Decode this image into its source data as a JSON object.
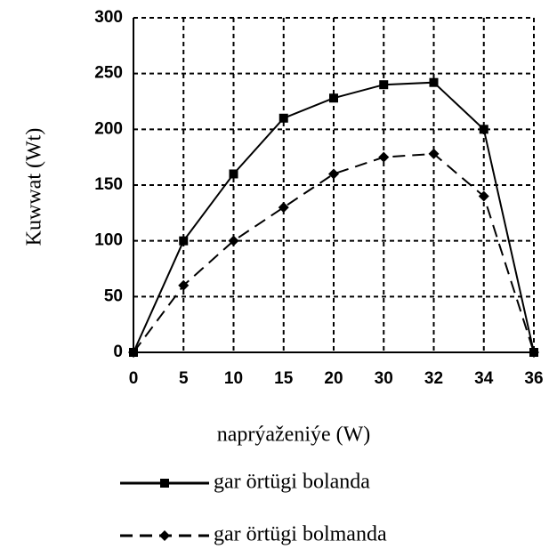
{
  "chart_data": {
    "type": "line",
    "xlabel": "naprýaženiýe (W)",
    "ylabel": "Kuwwat (Wt)",
    "categories": [
      "0",
      "5",
      "10",
      "15",
      "20",
      "30",
      "32",
      "34",
      "36"
    ],
    "series": [
      {
        "name": "gar örtügi bolanda",
        "color": "#000000",
        "linestyle": "solid",
        "marker": "square",
        "values": [
          0,
          100,
          160,
          210,
          228,
          240,
          242,
          200,
          0
        ]
      },
      {
        "name": "gar örtügi bolmanda",
        "color": "#000000",
        "linestyle": "dashed",
        "marker": "diamond",
        "values": [
          0,
          60,
          100,
          130,
          160,
          175,
          178,
          140,
          0
        ]
      }
    ],
    "ylim": [
      0,
      300
    ],
    "yticks": [
      0,
      50,
      100,
      150,
      200,
      250,
      300
    ],
    "grid": true
  }
}
